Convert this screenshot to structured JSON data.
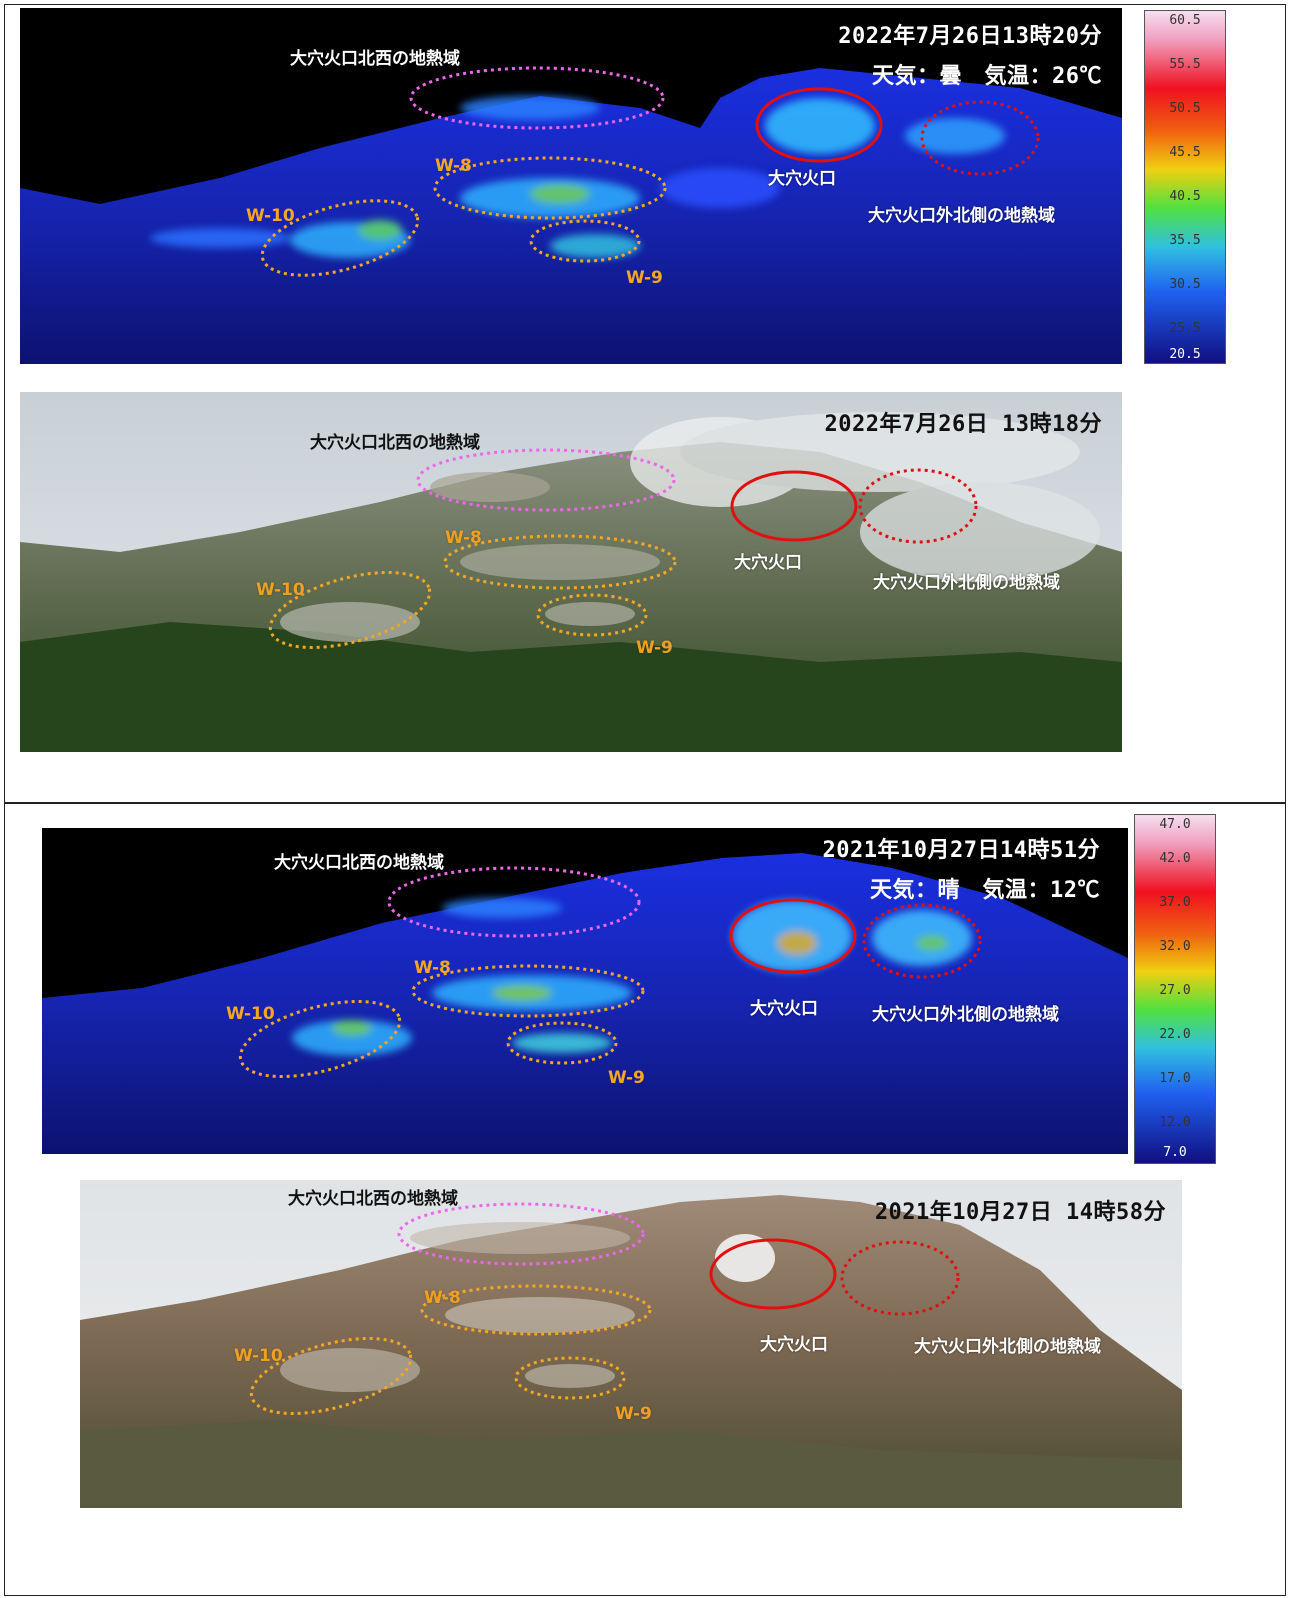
{
  "panel1": {
    "timestamp": "2022年7月26日13時20分",
    "weather": "天気：曇　気温：26℃",
    "labels": {
      "northwest": "大穴火口北西の地熱域",
      "crater": "大穴火口",
      "north_outer": "大穴火口外北側の地熱域",
      "w8": "W-8",
      "w9": "W-9",
      "w10": "W-10"
    },
    "scale": [
      "60.5",
      "55.5",
      "50.5",
      "45.5",
      "40.5",
      "35.5",
      "30.5",
      "25.5",
      "20.5"
    ]
  },
  "panel2": {
    "timestamp": "2022年7月26日 13時18分",
    "labels": {
      "northwest": "大穴火口北西の地熱域",
      "crater": "大穴火口",
      "north_outer": "大穴火口外北側の地熱域",
      "w8": "W-8",
      "w9": "W-9",
      "w10": "W-10"
    }
  },
  "panel3": {
    "timestamp": "2021年10月27日14時51分",
    "weather": "天気：晴　気温：12℃",
    "labels": {
      "northwest": "大穴火口北西の地熱域",
      "crater": "大穴火口",
      "north_outer": "大穴火口外北側の地熱域",
      "w8": "W-8",
      "w9": "W-9",
      "w10": "W-10"
    },
    "scale": [
      "47.0",
      "42.0",
      "37.0",
      "32.0",
      "27.0",
      "22.0",
      "17.0",
      "12.0",
      "7.0"
    ]
  },
  "panel4": {
    "timestamp": "2021年10月27日 14時58分",
    "labels": {
      "northwest": "大穴火口北西の地熱域",
      "crater": "大穴火口",
      "north_outer": "大穴火口外北側の地熱域",
      "w8": "W-8",
      "w9": "W-9",
      "w10": "W-10"
    }
  },
  "colors": {
    "pink_ellipse": "#ee66ee",
    "red_ellipse": "#e01010",
    "orange_ellipse": "#f5a623"
  }
}
